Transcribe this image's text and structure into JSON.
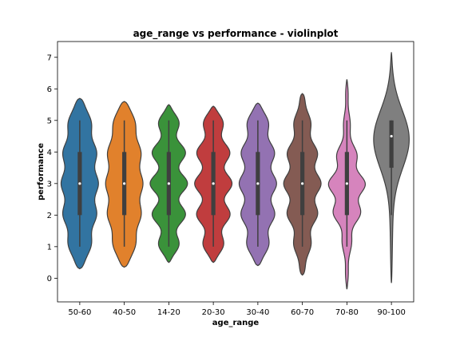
{
  "chart_data": {
    "type": "violin",
    "title": "age_range vs performance - violinplot",
    "xlabel": "age_range",
    "ylabel": "performance",
    "ylim": [
      -0.75,
      7.5
    ],
    "yticks": [
      0,
      1,
      2,
      3,
      4,
      5,
      6,
      7
    ],
    "grid": false,
    "categories": [
      "50-60",
      "40-50",
      "14-20",
      "20-30",
      "30-40",
      "60-70",
      "70-80",
      "90-100"
    ],
    "colors": [
      "#3274a1",
      "#e1812c",
      "#3a923a",
      "#c03d3e",
      "#9372b2",
      "#845b53",
      "#d684bd",
      "#7f7f7f"
    ],
    "series": [
      {
        "category": "50-60",
        "min": 1,
        "q1": 2,
        "median": 3,
        "q3": 4,
        "max": 5,
        "kde_low": 0.3,
        "kde_high": 5.7,
        "shape": "wavy",
        "amp": 0.18
      },
      {
        "category": "40-50",
        "min": 1,
        "q1": 2,
        "median": 3,
        "q3": 4,
        "max": 5,
        "kde_low": 0.35,
        "kde_high": 5.6,
        "shape": "wavy",
        "amp": 0.15
      },
      {
        "category": "14-20",
        "min": 1,
        "q1": 2,
        "median": 3,
        "q3": 4,
        "max": 5,
        "kde_low": 0.5,
        "kde_high": 5.5,
        "shape": "wavy",
        "amp": 0.45
      },
      {
        "category": "20-30",
        "min": 1,
        "q1": 2,
        "median": 3,
        "q3": 4,
        "max": 5,
        "kde_low": 0.5,
        "kde_high": 5.45,
        "shape": "wavy",
        "amp": 0.4
      },
      {
        "category": "30-40",
        "min": 1,
        "q1": 2,
        "median": 3,
        "q3": 4,
        "max": 5,
        "kde_low": 0.4,
        "kde_high": 5.55,
        "shape": "wavy",
        "amp": 0.28
      },
      {
        "category": "60-70",
        "min": 1,
        "q1": 2,
        "median": 3,
        "q3": 4,
        "max": 5,
        "kde_low": 0.1,
        "kde_high": 5.85,
        "shape": "wavy-narrow",
        "amp": 0.3
      },
      {
        "category": "70-80",
        "min": 1,
        "q1": 2,
        "median": 3,
        "q3": 4,
        "max": 5,
        "kde_low": -0.35,
        "kde_high": 6.3,
        "shape": "bulge",
        "amp": 0.35
      },
      {
        "category": "90-100",
        "min": 2,
        "q1": 3.5,
        "median": 4.5,
        "q3": 5,
        "max": 5,
        "kde_low": -0.15,
        "kde_high": 7.15,
        "shape": "highbulge",
        "amp": 0.0
      }
    ]
  }
}
